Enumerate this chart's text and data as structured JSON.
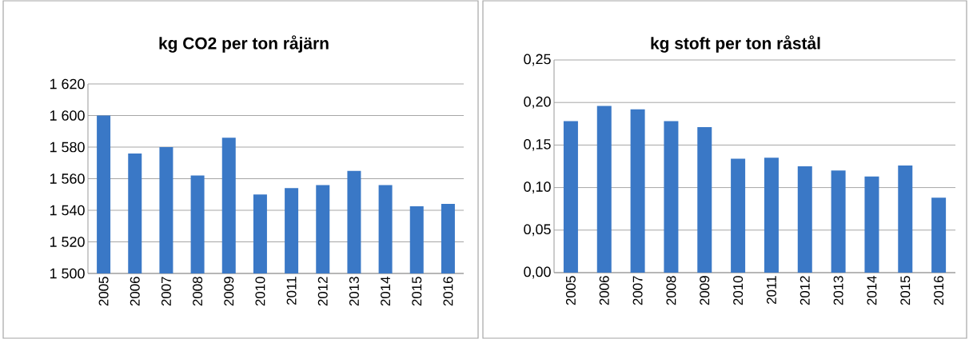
{
  "chart_data": [
    {
      "type": "bar",
      "title": "kg CO2 per ton råjärn",
      "categories": [
        "2005",
        "2006",
        "2007",
        "2008",
        "2009",
        "2010",
        "2011",
        "2012",
        "2013",
        "2014",
        "2015",
        "2016"
      ],
      "values": [
        1600,
        1576,
        1580,
        1562,
        1586,
        1550,
        1554,
        1556,
        1565,
        1556,
        1542.5,
        1544
      ],
      "color": "#3a78c6",
      "ylim": [
        1500,
        1620
      ],
      "yticks": [
        {
          "value": 1500,
          "label": "1 500"
        },
        {
          "value": 1520,
          "label": "1 520"
        },
        {
          "value": 1540,
          "label": "1 540"
        },
        {
          "value": 1560,
          "label": "1 560"
        },
        {
          "value": 1580,
          "label": "1 580"
        },
        {
          "value": 1600,
          "label": "1 600"
        },
        {
          "value": 1620,
          "label": "1 620"
        }
      ],
      "grid": "y"
    },
    {
      "type": "bar",
      "title": "kg stoft per ton råstål",
      "categories": [
        "2005",
        "2006",
        "2007",
        "2008",
        "2009",
        "2010",
        "2011",
        "2012",
        "2013",
        "2014",
        "2015",
        "2016"
      ],
      "values": [
        0.178,
        0.196,
        0.192,
        0.178,
        0.171,
        0.134,
        0.135,
        0.125,
        0.12,
        0.113,
        0.126,
        0.088
      ],
      "color": "#3a78c6",
      "ylim": [
        0,
        0.25
      ],
      "yticks": [
        {
          "value": 0,
          "label": "0,00"
        },
        {
          "value": 0.05,
          "label": "0,05"
        },
        {
          "value": 0.1,
          "label": "0,10"
        },
        {
          "value": 0.15,
          "label": "0,15"
        },
        {
          "value": 0.2,
          "label": "0,20"
        },
        {
          "value": 0.25,
          "label": "0,25"
        }
      ],
      "grid": "y"
    }
  ]
}
